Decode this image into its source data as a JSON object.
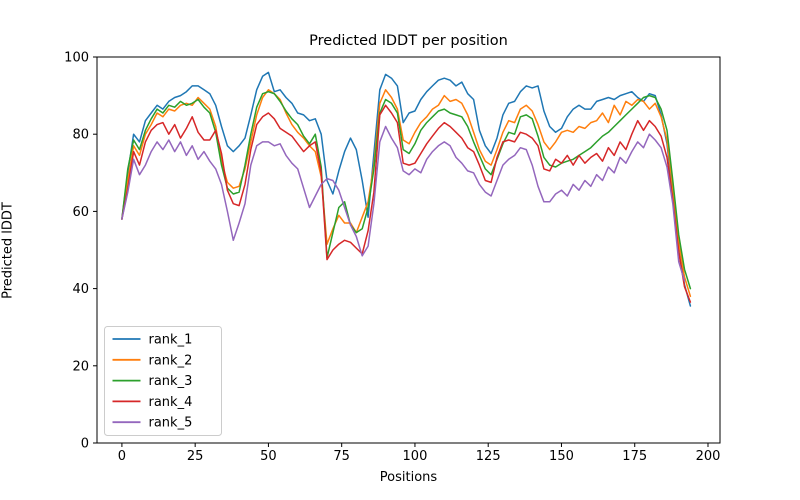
{
  "chart_data": {
    "type": "line",
    "title": "Predicted lDDT per position",
    "xlabel": "Positions",
    "ylabel": "Predicted lDDT",
    "xlim": [
      -8.5,
      204.1
    ],
    "ylim": [
      0,
      100
    ],
    "x_ticks": [
      0,
      25,
      50,
      75,
      100,
      125,
      150,
      175,
      200
    ],
    "y_ticks": [
      0,
      20,
      40,
      60,
      80,
      100
    ],
    "grid": false,
    "legend_position": "lower left",
    "x": [
      0,
      2,
      4,
      6,
      8,
      10,
      12,
      14,
      16,
      18,
      20,
      22,
      24,
      26,
      28,
      30,
      32,
      34,
      36,
      38,
      40,
      42,
      44,
      46,
      48,
      50,
      52,
      54,
      56,
      58,
      60,
      62,
      64,
      66,
      68,
      70,
      72,
      74,
      76,
      78,
      80,
      82,
      84,
      86,
      88,
      90,
      92,
      94,
      96,
      98,
      100,
      102,
      104,
      106,
      108,
      110,
      112,
      114,
      116,
      118,
      120,
      122,
      124,
      126,
      128,
      130,
      132,
      134,
      136,
      138,
      140,
      142,
      144,
      146,
      148,
      150,
      152,
      154,
      156,
      158,
      160,
      162,
      164,
      166,
      168,
      170,
      172,
      174,
      176,
      178,
      180,
      182,
      184,
      186,
      188,
      190,
      192,
      194
    ],
    "series": [
      {
        "name": "rank_1",
        "color": "#1f77b4",
        "values": [
          58,
          70,
          80,
          78,
          83.5,
          85.5,
          87.5,
          86.5,
          88.5,
          89.5,
          90,
          91,
          92.5,
          92.5,
          91.5,
          90.5,
          87.5,
          82,
          77,
          75.5,
          77,
          79,
          85,
          91.5,
          95,
          96,
          91,
          91.5,
          89.5,
          88,
          85.5,
          85,
          83.5,
          84,
          80,
          68,
          64.5,
          70.5,
          75.5,
          79,
          76,
          68,
          58.5,
          75,
          91.5,
          95.5,
          94.5,
          92.5,
          83,
          85.5,
          86,
          89,
          91,
          92.5,
          94,
          94.5,
          94,
          92.5,
          93.5,
          90.5,
          89,
          81,
          77,
          75,
          79,
          85,
          88,
          88.5,
          91,
          92.5,
          92,
          92.5,
          86,
          82,
          80.5,
          81.5,
          84.5,
          86.5,
          87.5,
          86.5,
          86.5,
          88.5,
          89,
          89.5,
          89,
          90,
          90.5,
          91,
          89.5,
          88.5,
          90.5,
          90,
          85,
          77.5,
          64,
          50,
          41,
          35.5
        ]
      },
      {
        "name": "rank_2",
        "color": "#ff7f0e",
        "values": [
          58,
          68,
          77,
          74.5,
          80,
          82.5,
          85.5,
          84.5,
          86.5,
          86,
          87.5,
          88,
          87.5,
          89.5,
          88,
          86.5,
          82,
          73,
          67.5,
          66,
          66.5,
          71,
          78,
          85,
          89.5,
          91.5,
          90.5,
          89,
          85.5,
          82.5,
          80.5,
          79,
          77,
          75.5,
          69,
          51.5,
          55.5,
          59,
          57,
          57,
          54.5,
          58.5,
          62.5,
          72,
          88,
          91.5,
          89.5,
          86.5,
          78.5,
          77.5,
          80.5,
          83,
          84.5,
          86.5,
          87.5,
          90,
          88.5,
          89,
          88,
          85,
          80.5,
          76,
          73,
          72,
          76,
          80.5,
          83.5,
          83,
          86.5,
          87.5,
          86,
          82.5,
          78,
          76,
          78,
          80.5,
          81,
          80.5,
          82,
          81.5,
          83,
          83.5,
          85.5,
          83,
          87.5,
          85,
          88.5,
          87.5,
          89,
          88.5,
          86.5,
          88,
          84.5,
          78.5,
          66,
          52,
          43,
          38
        ]
      },
      {
        "name": "rank_3",
        "color": "#2ca02c",
        "values": [
          58,
          71,
          78.5,
          76,
          81,
          84,
          86.5,
          85.5,
          87.5,
          87,
          88.5,
          87.5,
          88,
          89,
          87,
          85.5,
          80.5,
          72,
          66,
          64.5,
          65,
          72,
          80,
          87,
          90.5,
          91,
          90.5,
          88.5,
          86,
          84,
          82.5,
          79.5,
          77.5,
          80,
          71.5,
          48,
          54.5,
          61,
          62.5,
          56.5,
          54.5,
          55.5,
          61,
          71,
          85.5,
          89,
          88,
          85.5,
          76,
          75,
          77.5,
          81,
          83,
          84.5,
          86,
          86.5,
          85.5,
          85,
          84.5,
          82,
          78,
          74.5,
          71,
          69.5,
          73.5,
          77.5,
          80.5,
          80,
          84.5,
          85,
          84,
          79.5,
          74,
          72,
          71.5,
          72.5,
          73,
          73.5,
          74.5,
          75.5,
          76.5,
          78,
          79.5,
          80.5,
          82,
          83.5,
          85,
          86.5,
          88,
          89.5,
          90,
          89.5,
          86.5,
          81,
          68,
          54,
          45,
          40
        ]
      },
      {
        "name": "rank_4",
        "color": "#d62728",
        "values": [
          58,
          66,
          75.5,
          72,
          78,
          81,
          82.5,
          83,
          80,
          82.5,
          79,
          81.5,
          84.5,
          80.5,
          78.5,
          78.5,
          81,
          75,
          65.5,
          62,
          61.5,
          67,
          76,
          82.5,
          84.5,
          85.5,
          84,
          81.5,
          80.5,
          79.5,
          77.5,
          75.5,
          77,
          78,
          70,
          47.5,
          50,
          51.5,
          52.5,
          52,
          50.5,
          49,
          55,
          65,
          85,
          87.5,
          85.5,
          83,
          72.5,
          72,
          72.5,
          75,
          77.5,
          79.5,
          81.5,
          83,
          82,
          80.5,
          79,
          76.5,
          75.5,
          72,
          68,
          67.5,
          74,
          78,
          78.5,
          78,
          80.5,
          80,
          79,
          77,
          71,
          70.5,
          73.5,
          72.5,
          74.5,
          72,
          74.5,
          72.5,
          74,
          75,
          73,
          76.5,
          74.5,
          78,
          76,
          80,
          83.5,
          81,
          83.5,
          82,
          79.5,
          74,
          63,
          49.5,
          40.5,
          36.5
        ]
      },
      {
        "name": "rank_5",
        "color": "#9467bd",
        "values": [
          58,
          65,
          73.5,
          69.5,
          72,
          75.5,
          78,
          76,
          78.5,
          75.5,
          78,
          74.5,
          77,
          73.5,
          75.5,
          73,
          71,
          67,
          60,
          52.5,
          57,
          62,
          72,
          77,
          78,
          78,
          77,
          77.5,
          74.5,
          72.5,
          71,
          66,
          61,
          64,
          67,
          68.5,
          68,
          65.5,
          61,
          56.5,
          53.5,
          48.5,
          51,
          62,
          78,
          82,
          79,
          76.5,
          70.5,
          69.5,
          71,
          70,
          73.5,
          75.5,
          77,
          78,
          77,
          74,
          72.5,
          70.5,
          70,
          67,
          65,
          64,
          68,
          72,
          73.5,
          74.5,
          76.5,
          76,
          72,
          66.5,
          62.5,
          62.5,
          64.5,
          65.5,
          64,
          67,
          65.5,
          68,
          66.5,
          69.5,
          68,
          71.5,
          70,
          74,
          72.5,
          75.5,
          78,
          76.5,
          80,
          78.5,
          76.5,
          71.5,
          62,
          47,
          42,
          null
        ]
      }
    ]
  }
}
